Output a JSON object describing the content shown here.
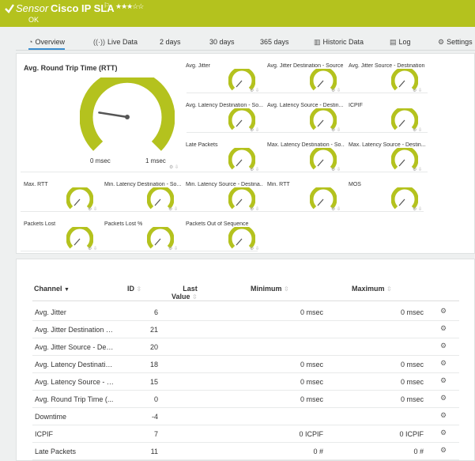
{
  "header": {
    "sensor_label": "Sensor",
    "title": "Cisco IP SLA",
    "status": "OK",
    "stars": "★★★☆☆",
    "flag": "⚐",
    "bg": "#b4c21e"
  },
  "tabs": [
    {
      "label": "Overview",
      "icon": "overview-icon"
    },
    {
      "label": "Live Data",
      "icon": "live-data-icon"
    },
    {
      "label": "2  days",
      "icon": ""
    },
    {
      "label": "30 days",
      "icon": ""
    },
    {
      "label": "365 days",
      "icon": ""
    },
    {
      "label": "Historic Data",
      "icon": "chart-icon"
    },
    {
      "label": "Log",
      "icon": "log-icon"
    },
    {
      "label": "Settings",
      "icon": "gear-icon"
    }
  ],
  "gauges": {
    "main": {
      "label": "Avg. Round Trip Time (RTT)",
      "min_label": "0 msec",
      "max_label": "1 msec",
      "value_fraction": 0.2
    },
    "small": [
      {
        "label": "Avg. Jitter"
      },
      {
        "label": "Avg. Jitter Destination - Source"
      },
      {
        "label": "Avg. Jitter Source - Destination"
      },
      {
        "label": "Avg. Latency Destination - So..."
      },
      {
        "label": "Avg. Latency Source - Destin..."
      },
      {
        "label": "ICPIF"
      },
      {
        "label": "Late Packets"
      },
      {
        "label": "Max. Latency Destination - So..."
      },
      {
        "label": "Max. Latency Source - Destin..."
      },
      {
        "label": "Max. RTT"
      },
      {
        "label": "Min. Latency Destination - So..."
      },
      {
        "label": "Min. Latency Source - Destina..."
      },
      {
        "label": "Min. RTT"
      },
      {
        "label": "MOS"
      },
      {
        "label": "Packets Lost"
      },
      {
        "label": "Packets Lost %"
      },
      {
        "label": "Packets Out of Sequence"
      }
    ]
  },
  "table": {
    "headers": {
      "channel": "Channel",
      "id": "ID",
      "last_value_1": "Last",
      "last_value_2": "Value",
      "minimum": "Minimum",
      "maximum": "Maximum"
    },
    "rows": [
      {
        "channel": "Avg. Jitter",
        "id": "6",
        "min": "0 msec",
        "max": "0 msec"
      },
      {
        "channel": "Avg. Jitter Destination -...",
        "id": "21",
        "min": "",
        "max": ""
      },
      {
        "channel": "Avg. Jitter Source - Des...",
        "id": "20",
        "min": "",
        "max": ""
      },
      {
        "channel": "Avg. Latency Destinatio...",
        "id": "18",
        "min": "0 msec",
        "max": "0 msec"
      },
      {
        "channel": "Avg. Latency Source - D...",
        "id": "15",
        "min": "0 msec",
        "max": "0 msec"
      },
      {
        "channel": "Avg. Round Trip Time (...",
        "id": "0",
        "min": "0 msec",
        "max": "0 msec"
      },
      {
        "channel": "Downtime",
        "id": "-4",
        "min": "",
        "max": ""
      },
      {
        "channel": "ICPIF",
        "id": "7",
        "min": "0 ICPIF",
        "max": "0 ICPIF"
      },
      {
        "channel": "Late Packets",
        "id": "11",
        "min": "0 #",
        "max": "0 #"
      }
    ]
  }
}
